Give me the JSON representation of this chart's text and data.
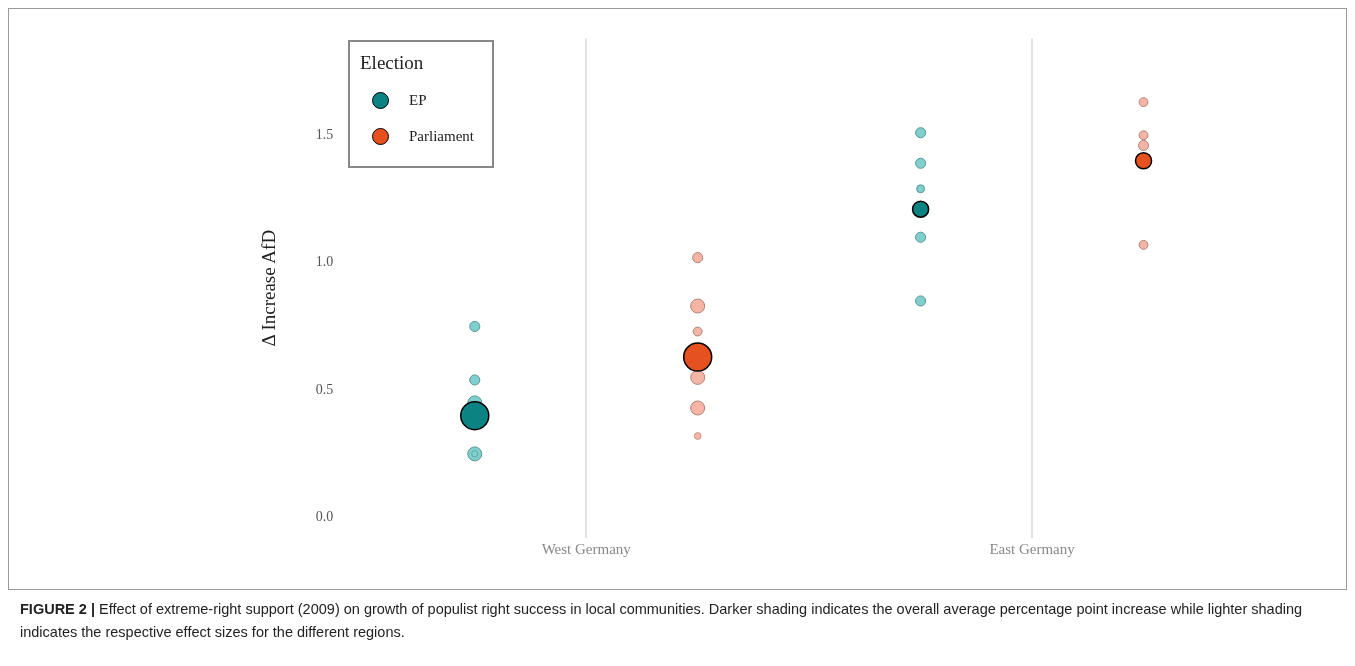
{
  "chart_data": {
    "type": "bubble",
    "categories": [
      "West Germany",
      "East Germany"
    ],
    "ylabel": "Δ Increase AfD",
    "legend_title": "Election",
    "legend": "top left",
    "grid": "x",
    "marker": "circle",
    "ylim": [
      -0.08,
      1.88
    ],
    "yticks": [
      {
        "value": 0,
        "label": "0.0"
      },
      {
        "value": 0.5,
        "label": "0.5"
      },
      {
        "value": 1,
        "label": "1.0"
      },
      {
        "value": 1.5,
        "label": "1.5"
      }
    ],
    "series": [
      {
        "name": "EP",
        "color": "#0b8383",
        "x": [
          "West Germany",
          "East Germany"
        ],
        "values": [
          0.4,
          1.21
        ],
        "sizes": [
          1,
          0.33
        ]
      },
      {
        "name": "Parliament",
        "color": "#e5511f",
        "x": [
          "West Germany",
          "East Germany"
        ],
        "values": [
          0.63,
          1.4
        ],
        "sizes": [
          1,
          0.33
        ]
      },
      {
        "color": "#7fcfcf",
        "x": [
          "West Germany",
          "West Germany",
          "West Germany",
          "West Germany",
          "West Germany",
          "East Germany",
          "East Germany",
          "East Germany",
          "East Germany",
          "East Germany"
        ],
        "values": [
          0.75,
          0.54,
          0.45,
          0.25,
          0.25,
          1.51,
          1.39,
          1.29,
          1.1,
          0.85
        ],
        "sizes": [
          0.13,
          0.13,
          0.25,
          0.25,
          0.05,
          0.13,
          0.13,
          0.08,
          0.13,
          0.13
        ]
      },
      {
        "color": "#f5b5a5",
        "x": [
          "West Germany",
          "West Germany",
          "West Germany",
          "West Germany",
          "West Germany",
          "West Germany",
          "East Germany",
          "East Germany",
          "East Germany",
          "East Germany"
        ],
        "values": [
          1.02,
          0.83,
          0.73,
          0.55,
          0.43,
          0.32,
          1.63,
          1.5,
          1.46,
          1.07
        ],
        "sizes": [
          0.13,
          0.25,
          0.1,
          0.25,
          0.25,
          0.06,
          0.1,
          0.1,
          0.13,
          0.1
        ]
      }
    ],
    "annotations": [
      "FIGURE 2 |",
      "Effect of extreme-right support (2009) on growth of populist right success in local communities. Darker shading indicates the overall average percentage point increase while lighter shading indicates the respective effect sizes for the different regions."
    ]
  }
}
